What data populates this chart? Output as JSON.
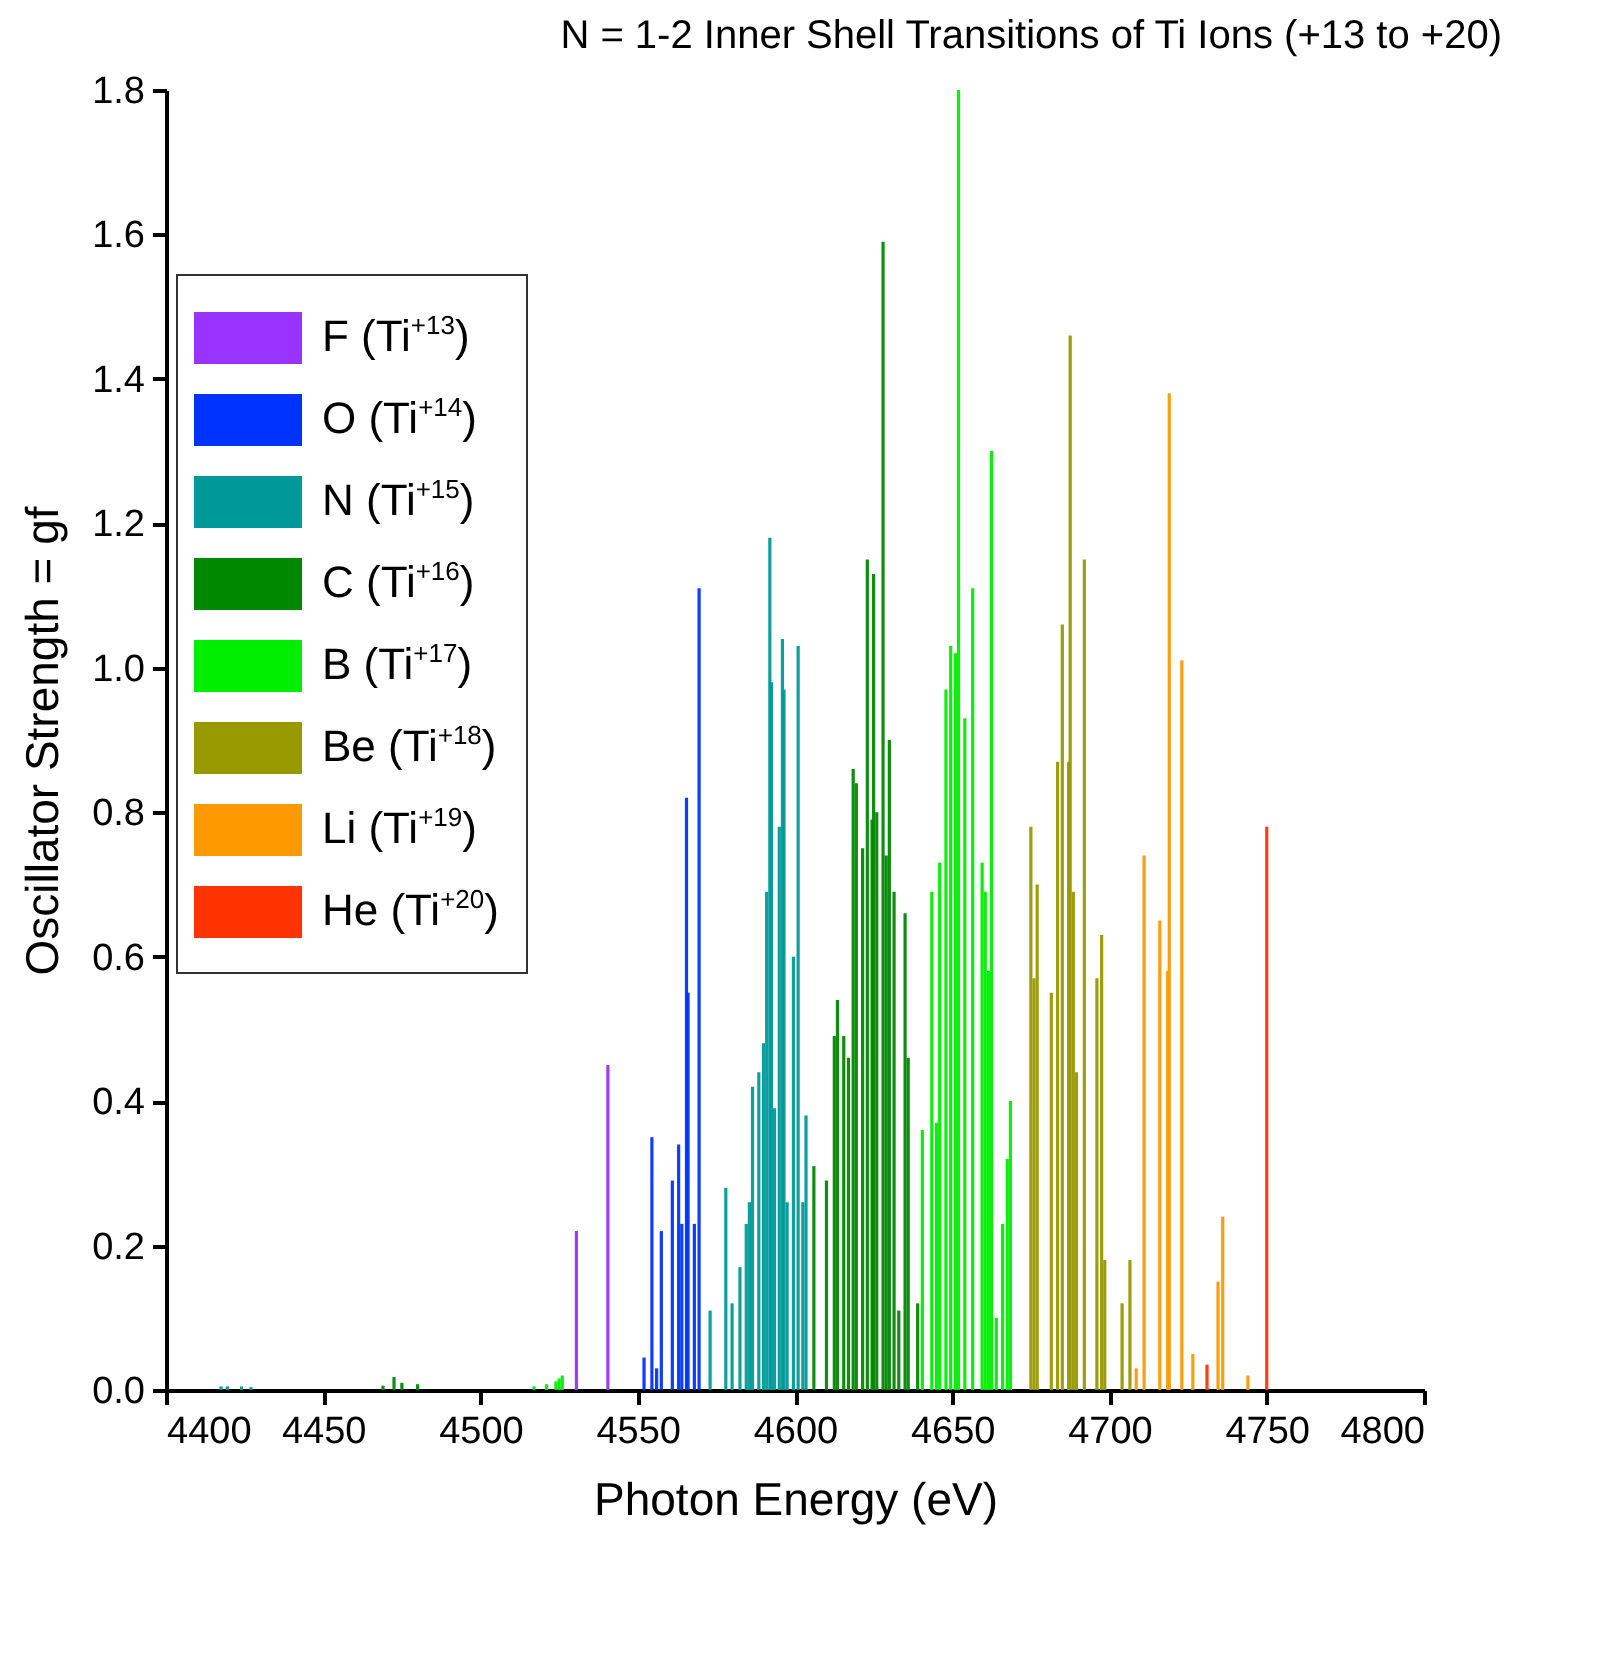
{
  "chart_data": {
    "type": "bar",
    "title": "N = 1-2 Inner Shell Transitions of Ti Ions (+13 to +20)",
    "xlabel": "Photon Energy (eV)",
    "ylabel": "Oscillator Strength = gf",
    "legend": "top left",
    "xlim": [
      4400,
      4800
    ],
    "xticks": [
      4400,
      4450,
      4500,
      4550,
      4600,
      4650,
      4700,
      4750,
      4800
    ],
    "ylim": [
      0,
      1.8
    ],
    "yticks": [
      {
        "value": 0,
        "label": "0.0"
      },
      {
        "value": 0.2,
        "label": "0.2"
      },
      {
        "value": 0.4,
        "label": "0.4"
      },
      {
        "value": 0.6,
        "label": "0.6"
      },
      {
        "value": 0.8,
        "label": "0.8"
      },
      {
        "value": 1,
        "label": "1.0"
      },
      {
        "value": 1.2,
        "label": "1.2"
      },
      {
        "value": 1.4,
        "label": "1.4"
      },
      {
        "value": 1.6,
        "label": "1.6"
      },
      {
        "value": 1.8,
        "label": "1.8"
      }
    ],
    "series": [
      {
        "name": "F (Ti$^{+13}$)",
        "color": "#9933ff",
        "x": [
          4530.5,
          4540.5
        ],
        "values": [
          0.22,
          0.45
        ]
      },
      {
        "name": "O (Ti$^{+14}$)",
        "color": "#0033ff",
        "x": [
          4552,
          4554.5,
          4556,
          4557.5,
          4561,
          4563,
          4564,
          4565.5,
          4566,
          4568,
          4569.5
        ],
        "values": [
          0.045,
          0.35,
          0.03,
          0.22,
          0.29,
          0.34,
          0.23,
          0.82,
          0.55,
          0.23,
          1.11
        ]
      },
      {
        "name": "N (Ti$^{+15}$)",
        "color": "#009999",
        "x": [
          4417.5,
          4419.5,
          4424,
          4427,
          4573,
          4578,
          4580,
          4582.5,
          4584.5,
          4585.5,
          4586.5,
          4588.5,
          4590,
          4591,
          4592,
          4592.5,
          4593.5,
          4595,
          4596,
          4596.5,
          4597.5,
          4599.5,
          4601,
          4602.5,
          4603.5
        ],
        "values": [
          0.005,
          0.005,
          0.005,
          0.004,
          0.11,
          0.28,
          0.12,
          0.17,
          0.23,
          0.26,
          0.42,
          0.44,
          0.48,
          0.69,
          1.18,
          0.98,
          0.39,
          0.78,
          1.04,
          0.97,
          0.26,
          0.6,
          1.03,
          0.26,
          0.38
        ]
      },
      {
        "name": "C (Ti$^{+16}$)",
        "color": "#008800",
        "x": [
          4469,
          4472.5,
          4475,
          4480,
          4606,
          4610,
          4612.5,
          4613.5,
          4615.5,
          4617,
          4618.5,
          4619.5,
          4621.5,
          4623,
          4624.5,
          4625,
          4626,
          4628,
          4629,
          4630,
          4631.5,
          4633,
          4635,
          4636,
          4639
        ],
        "values": [
          0.006,
          0.018,
          0.01,
          0.008,
          0.31,
          0.29,
          0.49,
          0.54,
          0.49,
          0.46,
          0.86,
          0.84,
          0.75,
          1.15,
          0.79,
          1.13,
          0.8,
          1.59,
          0.74,
          0.9,
          0.69,
          0.11,
          0.66,
          0.46,
          0.12
        ]
      },
      {
        "name": "B (Ti$^{+17}$)",
        "color": "#00ee00",
        "x": [
          4517,
          4521,
          4524,
          4525,
          4526,
          4640.5,
          4643.5,
          4645,
          4646,
          4648,
          4649.5,
          4651,
          4652,
          4654,
          4656.5,
          4659.5,
          4660.5,
          4661.5,
          4662.5,
          4664,
          4666,
          4667.5,
          4668.5
        ],
        "values": [
          0.005,
          0.008,
          0.012,
          0.016,
          0.02,
          0.36,
          0.69,
          0.37,
          0.73,
          0.97,
          1.03,
          1.02,
          1.8,
          0.93,
          1.11,
          0.73,
          0.69,
          0.58,
          1.3,
          0.1,
          0.23,
          0.32,
          0.4
        ]
      },
      {
        "name": "Be (Ti$^{+18}$)",
        "color": "#999900",
        "x": [
          4675,
          4676,
          4677,
          4681.5,
          4683.5,
          4685,
          4687,
          4687.5,
          4688.5,
          4689.5,
          4692,
          4696,
          4697.5,
          4698.5,
          4704,
          4706.5
        ],
        "values": [
          0.78,
          0.57,
          0.7,
          0.55,
          0.87,
          1.06,
          0.87,
          1.46,
          0.69,
          0.44,
          1.15,
          0.57,
          0.63,
          0.18,
          0.12,
          0.18
        ]
      },
      {
        "name": "Li (Ti$^{+19}$)",
        "color": "#ff9900",
        "x": [
          4708.5,
          4711,
          4716,
          4718.5,
          4719,
          4723,
          4726.5,
          4734.5,
          4736,
          4744
        ],
        "values": [
          0.03,
          0.74,
          0.65,
          0.58,
          1.38,
          1.01,
          0.05,
          0.15,
          0.24,
          0.02
        ]
      },
      {
        "name": "He (Ti$^{+20}$)",
        "color": "#ff3300",
        "x": [
          4731,
          4750
        ],
        "values": [
          0.035,
          0.78
        ]
      }
    ]
  }
}
